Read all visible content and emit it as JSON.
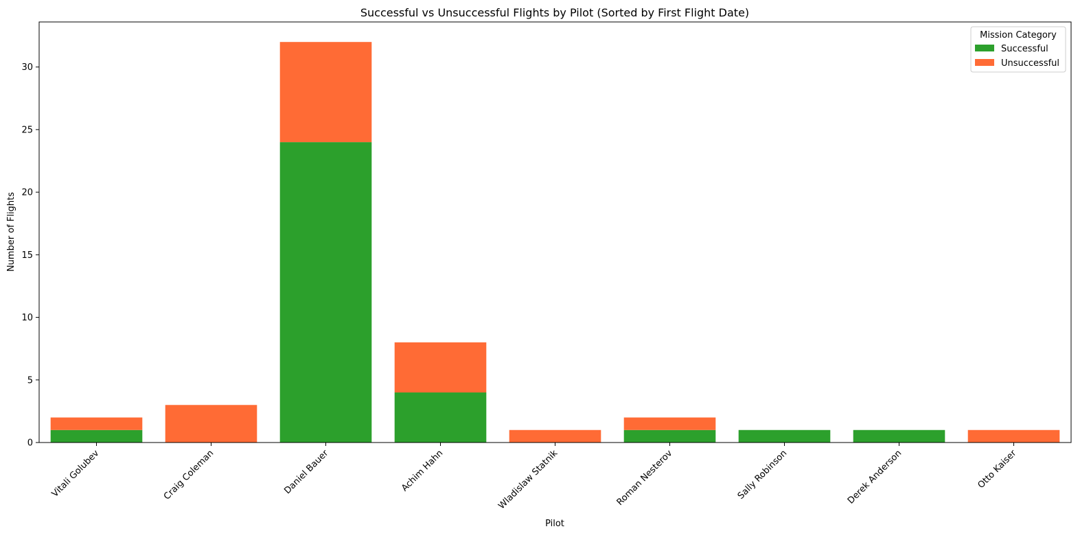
{
  "chart_data": {
    "type": "bar",
    "stacked": true,
    "title": "Successful vs Unsuccessful Flights by Pilot (Sorted by First Flight Date)",
    "xlabel": "Pilot",
    "ylabel": "Number of Flights",
    "categories": [
      "Vitali Golubev",
      "Craig Coleman",
      "Daniel Bauer",
      "Achim Hahn",
      "Wladislaw Statnik",
      "Roman Nesterov",
      "Sally Robinson",
      "Derek Anderson",
      "Otto Kaiser"
    ],
    "series": [
      {
        "name": "Successful",
        "color": "#2ca02c",
        "values": [
          1,
          0,
          24,
          4,
          0,
          1,
          1,
          1,
          0
        ]
      },
      {
        "name": "Unsuccessful",
        "color": "#ff6b35",
        "values": [
          1,
          3,
          8,
          4,
          1,
          1,
          0,
          0,
          1
        ]
      }
    ],
    "ylim": [
      0,
      33.6
    ],
    "yticks": [
      0,
      5,
      10,
      15,
      20,
      25,
      30
    ],
    "legend": {
      "title": "Mission Category",
      "position": "top-right"
    },
    "grid": false
  }
}
